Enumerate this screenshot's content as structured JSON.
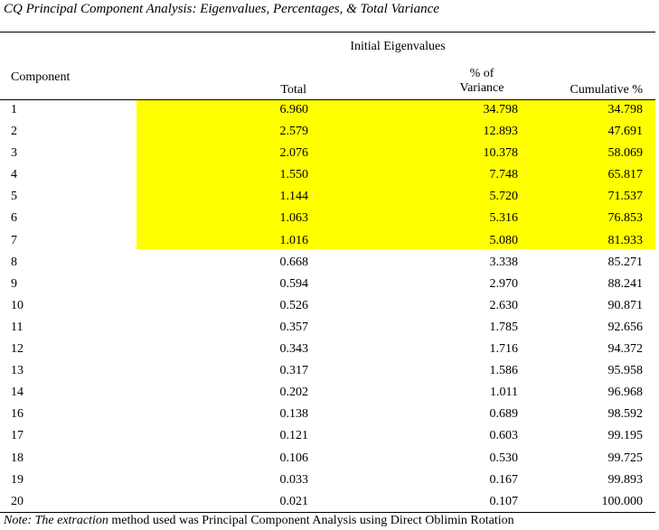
{
  "title": "CQ Principal Component Analysis:  Eigenvalues, Percentages, & Total Variance",
  "group_header": "Initial Eigenvalues",
  "columns": {
    "component": "Component",
    "total": "Total",
    "variance_line1": "% of",
    "variance_line2": "Variance",
    "cumulative": "Cumulative %"
  },
  "highlight_color": "#ffff00",
  "highlighted_rows": 7,
  "rows": [
    {
      "component": "1",
      "total": "6.960",
      "variance": "34.798",
      "cumulative": "34.798"
    },
    {
      "component": "2",
      "total": "2.579",
      "variance": "12.893",
      "cumulative": "47.691"
    },
    {
      "component": "3",
      "total": "2.076",
      "variance": "10.378",
      "cumulative": "58.069"
    },
    {
      "component": "4",
      "total": "1.550",
      "variance": "7.748",
      "cumulative": "65.817"
    },
    {
      "component": "5",
      "total": "1.144",
      "variance": "5.720",
      "cumulative": "71.537"
    },
    {
      "component": "6",
      "total": "1.063",
      "variance": "5.316",
      "cumulative": "76.853"
    },
    {
      "component": "7",
      "total": "1.016",
      "variance": "5.080",
      "cumulative": "81.933"
    },
    {
      "component": "8",
      "total": "0.668",
      "variance": "3.338",
      "cumulative": "85.271"
    },
    {
      "component": "9",
      "total": "0.594",
      "variance": "2.970",
      "cumulative": "88.241"
    },
    {
      "component": "10",
      "total": "0.526",
      "variance": "2.630",
      "cumulative": "90.871"
    },
    {
      "component": "11",
      "total": "0.357",
      "variance": "1.785",
      "cumulative": "92.656"
    },
    {
      "component": "12",
      "total": "0.343",
      "variance": "1.716",
      "cumulative": "94.372"
    },
    {
      "component": "13",
      "total": "0.317",
      "variance": "1.586",
      "cumulative": "95.958"
    },
    {
      "component": "14",
      "total": "0.202",
      "variance": "1.011",
      "cumulative": "96.968"
    },
    {
      "component": "16",
      "total": "0.138",
      "variance": "0.689",
      "cumulative": "98.592"
    },
    {
      "component": "17",
      "total": "0.121",
      "variance": "0.603",
      "cumulative": "99.195"
    },
    {
      "component": "18",
      "total": "0.106",
      "variance": "0.530",
      "cumulative": "99.725"
    },
    {
      "component": "19",
      "total": "0.033",
      "variance": "0.167",
      "cumulative": "99.893"
    },
    {
      "component": "20",
      "total": "0.021",
      "variance": "0.107",
      "cumulative": "100.000"
    }
  ],
  "note": {
    "italic": "Note: The extraction",
    "rest": " method used was Principal Component Analysis using Direct Oblimin Rotation"
  }
}
